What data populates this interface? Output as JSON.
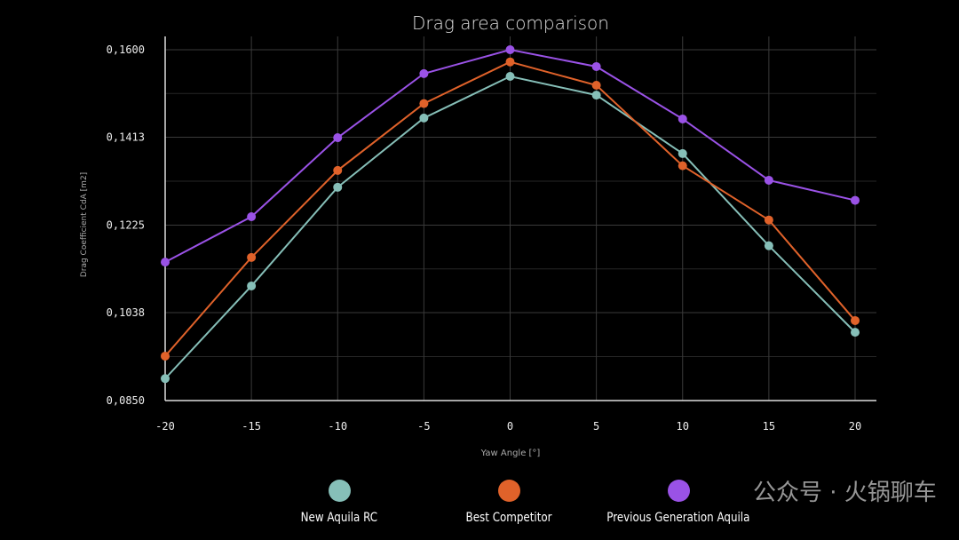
{
  "chart_data": {
    "type": "line",
    "title": "Drag area comparison",
    "xlabel": "Yaw Angle [°]",
    "ylabel": "Drag Coefficient CdA [m2]",
    "x": [
      -20,
      -15,
      -10,
      -5,
      0,
      5,
      10,
      15,
      20
    ],
    "x_tick_labels": [
      "-20",
      "-15",
      "-10",
      "-5",
      "0",
      "5",
      "10",
      "15",
      "20"
    ],
    "y_ticks": [
      0.085,
      0.1038,
      0.1225,
      0.1413,
      0.16
    ],
    "y_tick_labels": [
      "0,0850",
      "0,1038",
      "0,1225",
      "0,1413",
      "0,1600"
    ],
    "ylim": [
      0.085,
      0.16
    ],
    "xlim": [
      -20,
      20
    ],
    "grid": true,
    "legend_placement": "bottom",
    "series": [
      {
        "name": "New Aquila RC",
        "color": "#86bfb8",
        "values": [
          0.0897,
          0.1095,
          0.1306,
          0.1454,
          0.1543,
          0.1503,
          0.1378,
          0.1181,
          0.0996
        ]
      },
      {
        "name": "Best Competitor",
        "color": "#e0622a",
        "values": [
          0.0945,
          0.1156,
          0.1342,
          0.1485,
          0.1574,
          0.1524,
          0.1352,
          0.1236,
          0.1021
        ]
      },
      {
        "name": "Previous Generation Aquila",
        "color": "#9a52e6",
        "values": [
          0.1146,
          0.1243,
          0.1412,
          0.1549,
          0.16,
          0.1564,
          0.1452,
          0.1321,
          0.1278
        ]
      }
    ]
  },
  "watermark": "公众号 · 火锅聊车"
}
